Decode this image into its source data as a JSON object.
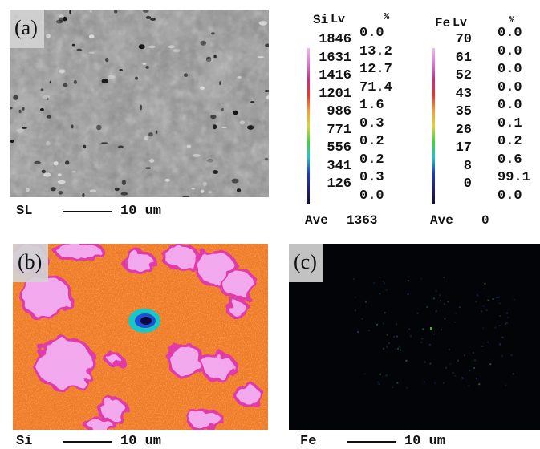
{
  "panels": {
    "a": {
      "label": "(a)",
      "element": "SL",
      "scale_text": "10 um"
    },
    "b": {
      "label": "(b)",
      "element": "Si",
      "scale_text": "10 um"
    },
    "c": {
      "label": "(c)",
      "element": "Fe",
      "scale_text": "10 um"
    }
  },
  "legend_si": {
    "element": "Si",
    "lv_label": "Lv",
    "pct_label": "%",
    "levels": [
      "1846",
      "1631",
      "1416",
      "1201",
      "986",
      "771",
      "556",
      "341",
      "126"
    ],
    "percents": [
      "0.0",
      "13.2",
      "12.7",
      "71.4",
      "1.6",
      "0.3",
      "0.2",
      "0.2",
      "0.3",
      "0.0"
    ],
    "ave_label": "Ave",
    "ave_value": "1363"
  },
  "legend_fe": {
    "element": "Fe",
    "lv_label": "Lv",
    "pct_label": "%",
    "levels": [
      "70",
      "61",
      "52",
      "43",
      "35",
      "26",
      "17",
      "8",
      "0"
    ],
    "percents": [
      "0.0",
      "0.0",
      "0.0",
      "0.0",
      "0.0",
      "0.1",
      "0.2",
      "0.6",
      "99.1",
      "0.0"
    ],
    "ave_label": "Ave",
    "ave_value": "0"
  },
  "colors": {
    "si_map_base": "#f07a2a",
    "si_map_high": "#f2a9ee",
    "fe_map_base": "#020408",
    "sem_base": "#8e8e8e"
  }
}
